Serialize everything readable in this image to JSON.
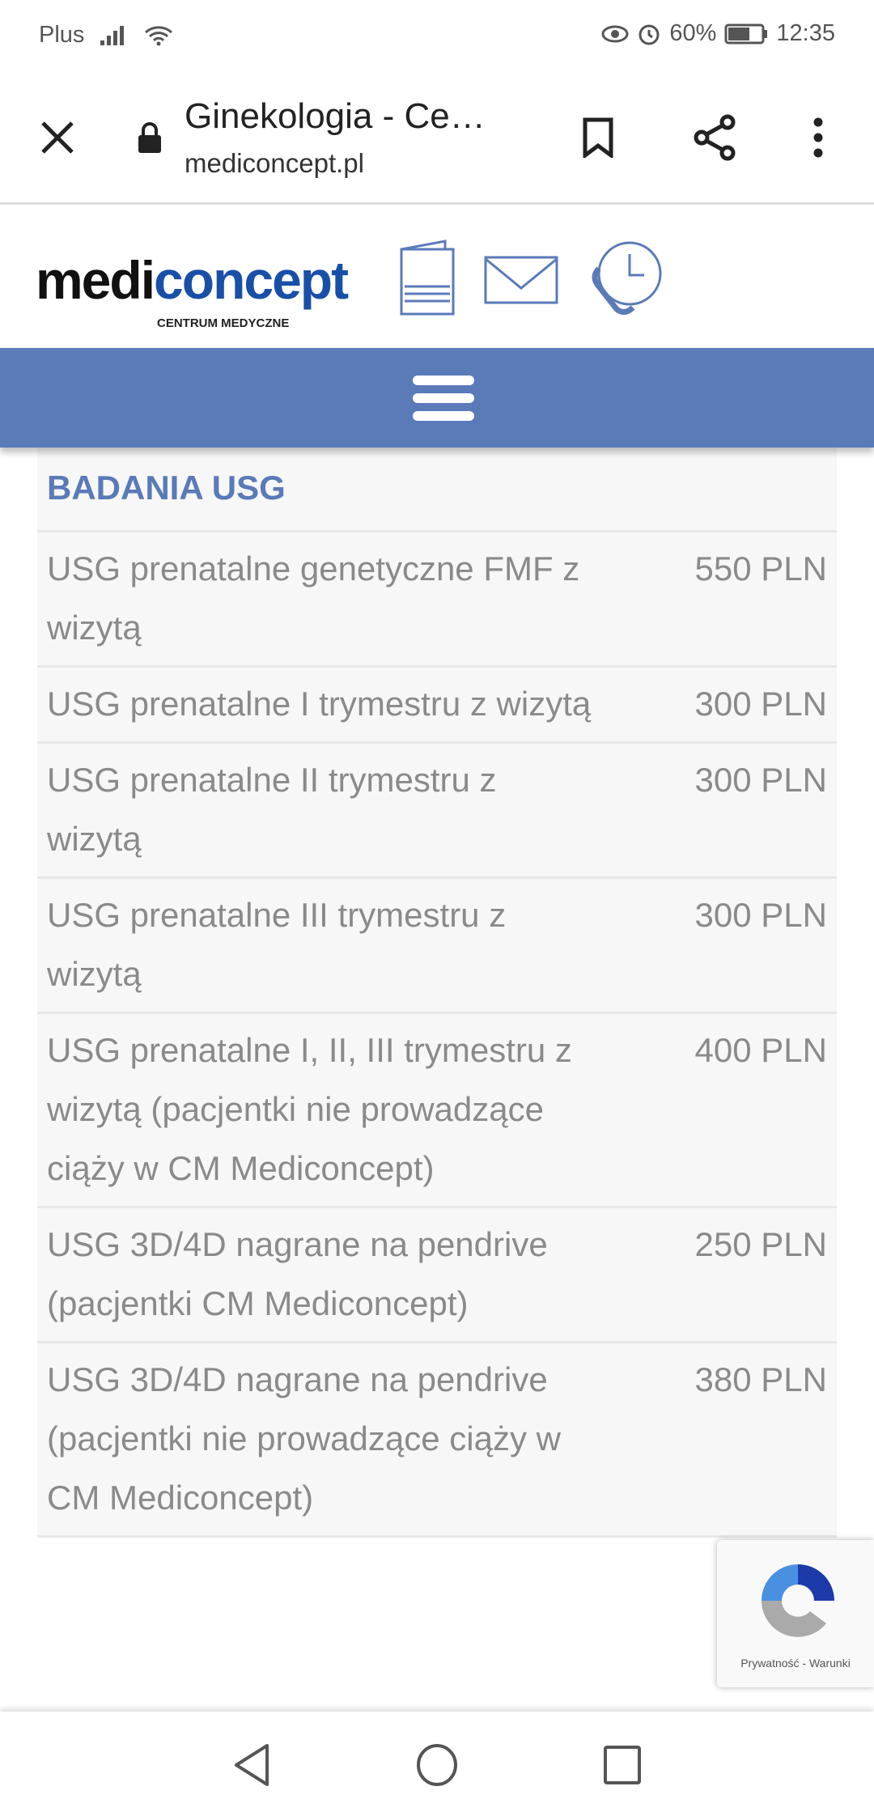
{
  "status_bar": {
    "carrier": "Plus",
    "battery": "60%",
    "time": "12:35"
  },
  "browser": {
    "title": "Ginekologia - Ce…",
    "url": "mediconcept.pl"
  },
  "site": {
    "logo_main_a": "medi",
    "logo_main_b": "concept",
    "logo_sub": "CENTRUM MEDYCZNE",
    "accent": "#5a7ab8"
  },
  "table": {
    "heading": "BADANIA USG",
    "rows": [
      {
        "name": "USG prenatalne genetyczne FMF z wizytą",
        "price": "550 PLN"
      },
      {
        "name": "USG prenatalne I trymestru z wizytą",
        "price": "300 PLN"
      },
      {
        "name": "USG prenatalne II trymestru z wizytą",
        "price": "300 PLN"
      },
      {
        "name": "USG prenatalne III trymestru z wizytą",
        "price": "300 PLN"
      },
      {
        "name": "USG prenatalne I, II, III trymestru z wizytą (pacjentki nie prowadzące ciąży w CM Mediconcept)",
        "price": "400 PLN"
      },
      {
        "name": "USG 3D/4D nagrane na pendrive (pacjentki CM Mediconcept)",
        "price": "250 PLN"
      },
      {
        "name": "USG 3D/4D nagrane na pendrive (pacjentki nie prowadzące ciąży w CM Mediconcept)",
        "price": "380 PLN"
      }
    ]
  },
  "recaptcha": {
    "links": "Prywatność - Warunki"
  }
}
